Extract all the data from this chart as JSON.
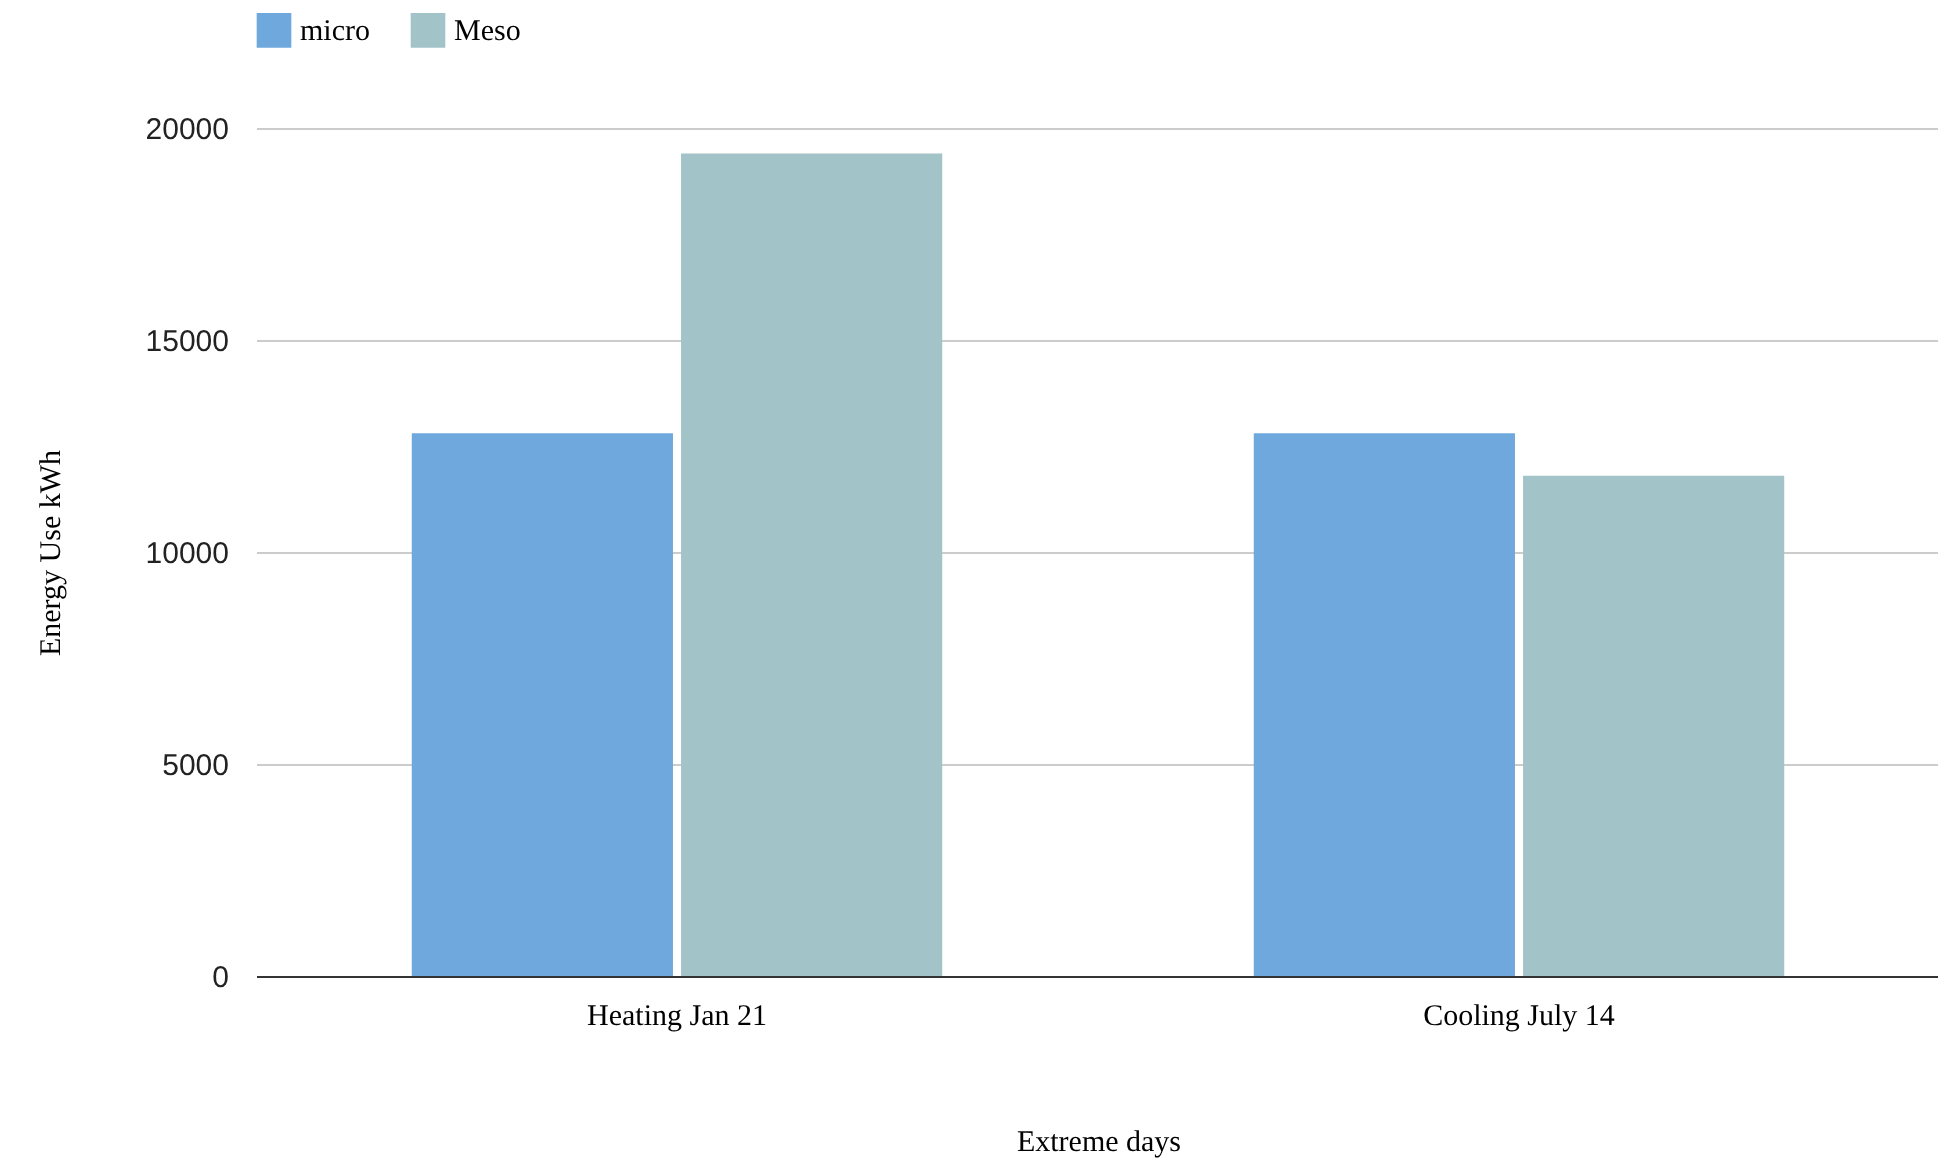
{
  "chart_data": {
    "type": "bar",
    "xlabel": "Extreme days",
    "ylabel": "Energy Use kWh",
    "categories": [
      "Heating Jan 21",
      "Cooling July 14"
    ],
    "series": [
      {
        "name": "micro",
        "color": "#6fa8dc",
        "values": [
          12800,
          12800
        ]
      },
      {
        "name": "Meso",
        "color": "#a2c4c9",
        "values": [
          19400,
          11800
        ]
      }
    ],
    "ylim": [
      0,
      20000
    ],
    "yticks": [
      0,
      5000,
      10000,
      15000,
      20000
    ],
    "grid": "y",
    "legend": "top"
  }
}
